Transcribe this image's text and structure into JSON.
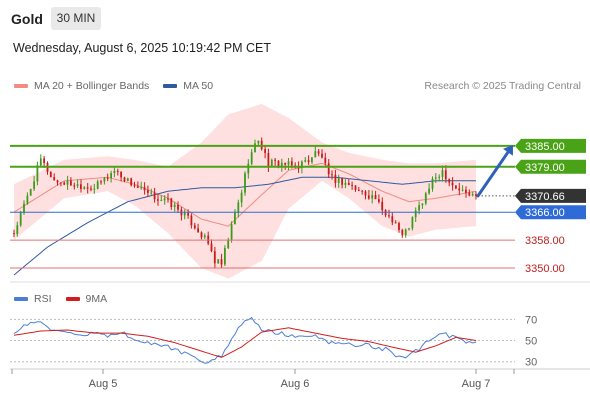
{
  "header": {
    "title": "Gold",
    "timeframe": "30 MIN"
  },
  "datetime": "Wednesday, August 6, 2025 10:19:42 PM CET",
  "legend": {
    "items": [
      {
        "label": "MA 20 + Bollinger Bands",
        "color": "#f28b82"
      },
      {
        "label": "MA 50",
        "color": "#2f5a9e"
      }
    ],
    "credit": "Research © 2025 Trading Central"
  },
  "rsi_legend": {
    "items": [
      {
        "label": "RSI",
        "color": "#4a7fd6"
      },
      {
        "label": "9MA",
        "color": "#d21e1e"
      }
    ]
  },
  "colors": {
    "up": "#3b9a1c",
    "down": "#c91a1a",
    "band": "#fde0df",
    "resistance": "#4aa316",
    "support": "#2f6bd6",
    "current": "#333333",
    "arrow": "#2d62b8"
  },
  "chart_data": [
    {
      "type": "candlestick",
      "symbol": "Gold",
      "x_labels": [
        "Aug 5",
        "Aug 6",
        "Aug 7"
      ],
      "ylim": [
        3346,
        3399
      ],
      "current_price": 3370.66,
      "current_price_label": "3370.66",
      "levels": [
        {
          "value": 3385.0,
          "label": "3385.00",
          "kind": "resistance"
        },
        {
          "value": 3379.0,
          "label": "3379.00",
          "kind": "resistance"
        },
        {
          "value": 3366.0,
          "label": "3366.00",
          "kind": "support"
        },
        {
          "value": 3358.0,
          "label": "3358.00",
          "kind": "support-minor"
        },
        {
          "value": 3350.0,
          "label": "3350.00",
          "kind": "support-minor"
        }
      ],
      "forecast_arrow": {
        "from": 3370.66,
        "to": 3385.0
      },
      "close_path": [
        [
          0,
          3360
        ],
        [
          5,
          3373
        ],
        [
          8,
          3381
        ],
        [
          12,
          3375
        ],
        [
          18,
          3374
        ],
        [
          24,
          3373
        ],
        [
          30,
          3378
        ],
        [
          34,
          3375
        ],
        [
          40,
          3371
        ],
        [
          46,
          3369
        ],
        [
          50,
          3366
        ],
        [
          54,
          3362
        ],
        [
          58,
          3357
        ],
        [
          60,
          3352
        ],
        [
          62,
          3351
        ],
        [
          65,
          3362
        ],
        [
          68,
          3372
        ],
        [
          70,
          3381
        ],
        [
          73,
          3387
        ],
        [
          76,
          3380
        ],
        [
          80,
          3380
        ],
        [
          84,
          3379
        ],
        [
          88,
          3381
        ],
        [
          90,
          3383
        ],
        [
          92,
          3382
        ],
        [
          94,
          3376
        ],
        [
          97,
          3375
        ],
        [
          100,
          3374
        ],
        [
          103,
          3372
        ],
        [
          106,
          3371
        ],
        [
          108,
          3370
        ],
        [
          110,
          3366
        ],
        [
          112,
          3365
        ],
        [
          114,
          3363
        ],
        [
          116,
          3359
        ],
        [
          118,
          3362
        ],
        [
          120,
          3366
        ],
        [
          122,
          3369
        ],
        [
          124,
          3373
        ],
        [
          126,
          3376
        ],
        [
          128,
          3378
        ],
        [
          130,
          3375
        ],
        [
          132,
          3373
        ],
        [
          134,
          3372
        ],
        [
          136,
          3371
        ],
        [
          138,
          3370.66
        ]
      ],
      "bands": [
        [
          0,
          3366,
          3358,
          3374
        ],
        [
          15,
          3375,
          3370,
          3381
        ],
        [
          28,
          3376,
          3372,
          3382
        ],
        [
          36,
          3374,
          3368,
          3381
        ],
        [
          46,
          3370,
          3360,
          3379
        ],
        [
          56,
          3364,
          3350,
          3386
        ],
        [
          64,
          3362,
          3347,
          3394
        ],
        [
          74,
          3371,
          3352,
          3397
        ],
        [
          82,
          3378,
          3367,
          3393
        ],
        [
          92,
          3380,
          3375,
          3386
        ],
        [
          100,
          3377,
          3370,
          3383
        ],
        [
          110,
          3372,
          3362,
          3381
        ],
        [
          118,
          3369,
          3359,
          3380
        ],
        [
          126,
          3370,
          3361,
          3380
        ],
        [
          138,
          3372,
          3362,
          3381
        ]
      ],
      "ma50": [
        [
          0,
          3348
        ],
        [
          10,
          3356
        ],
        [
          22,
          3363
        ],
        [
          34,
          3369
        ],
        [
          46,
          3372
        ],
        [
          56,
          3373
        ],
        [
          66,
          3373
        ],
        [
          76,
          3374
        ],
        [
          86,
          3376
        ],
        [
          96,
          3376
        ],
        [
          106,
          3375
        ],
        [
          116,
          3374
        ],
        [
          126,
          3375
        ],
        [
          138,
          3375
        ]
      ]
    },
    {
      "type": "line",
      "title": "",
      "yticks": [
        70,
        50,
        30
      ],
      "ylim": [
        24,
        77
      ],
      "rsi": [
        [
          0,
          58
        ],
        [
          4,
          66
        ],
        [
          8,
          68
        ],
        [
          12,
          58
        ],
        [
          16,
          57
        ],
        [
          20,
          54
        ],
        [
          24,
          57
        ],
        [
          28,
          55
        ],
        [
          32,
          58
        ],
        [
          36,
          52
        ],
        [
          40,
          47
        ],
        [
          44,
          46
        ],
        [
          48,
          42
        ],
        [
          52,
          36
        ],
        [
          55,
          32
        ],
        [
          58,
          29
        ],
        [
          62,
          36
        ],
        [
          65,
          50
        ],
        [
          68,
          66
        ],
        [
          71,
          70
        ],
        [
          74,
          60
        ],
        [
          78,
          58
        ],
        [
          82,
          55
        ],
        [
          86,
          55
        ],
        [
          90,
          54
        ],
        [
          94,
          49
        ],
        [
          98,
          47
        ],
        [
          102,
          46
        ],
        [
          106,
          46
        ],
        [
          109,
          43
        ],
        [
          112,
          41
        ],
        [
          115,
          34
        ],
        [
          118,
          36
        ],
        [
          121,
          42
        ],
        [
          124,
          50
        ],
        [
          127,
          58
        ],
        [
          130,
          54
        ],
        [
          134,
          50
        ],
        [
          138,
          47
        ]
      ],
      "ma9": [
        [
          0,
          55
        ],
        [
          8,
          59
        ],
        [
          16,
          60
        ],
        [
          24,
          57
        ],
        [
          32,
          57
        ],
        [
          40,
          54
        ],
        [
          48,
          48
        ],
        [
          56,
          40
        ],
        [
          62,
          34
        ],
        [
          68,
          44
        ],
        [
          74,
          58
        ],
        [
          82,
          62
        ],
        [
          90,
          57
        ],
        [
          98,
          52
        ],
        [
          106,
          49
        ],
        [
          114,
          43
        ],
        [
          120,
          39
        ],
        [
          126,
          45
        ],
        [
          132,
          53
        ],
        [
          138,
          50
        ]
      ]
    }
  ]
}
